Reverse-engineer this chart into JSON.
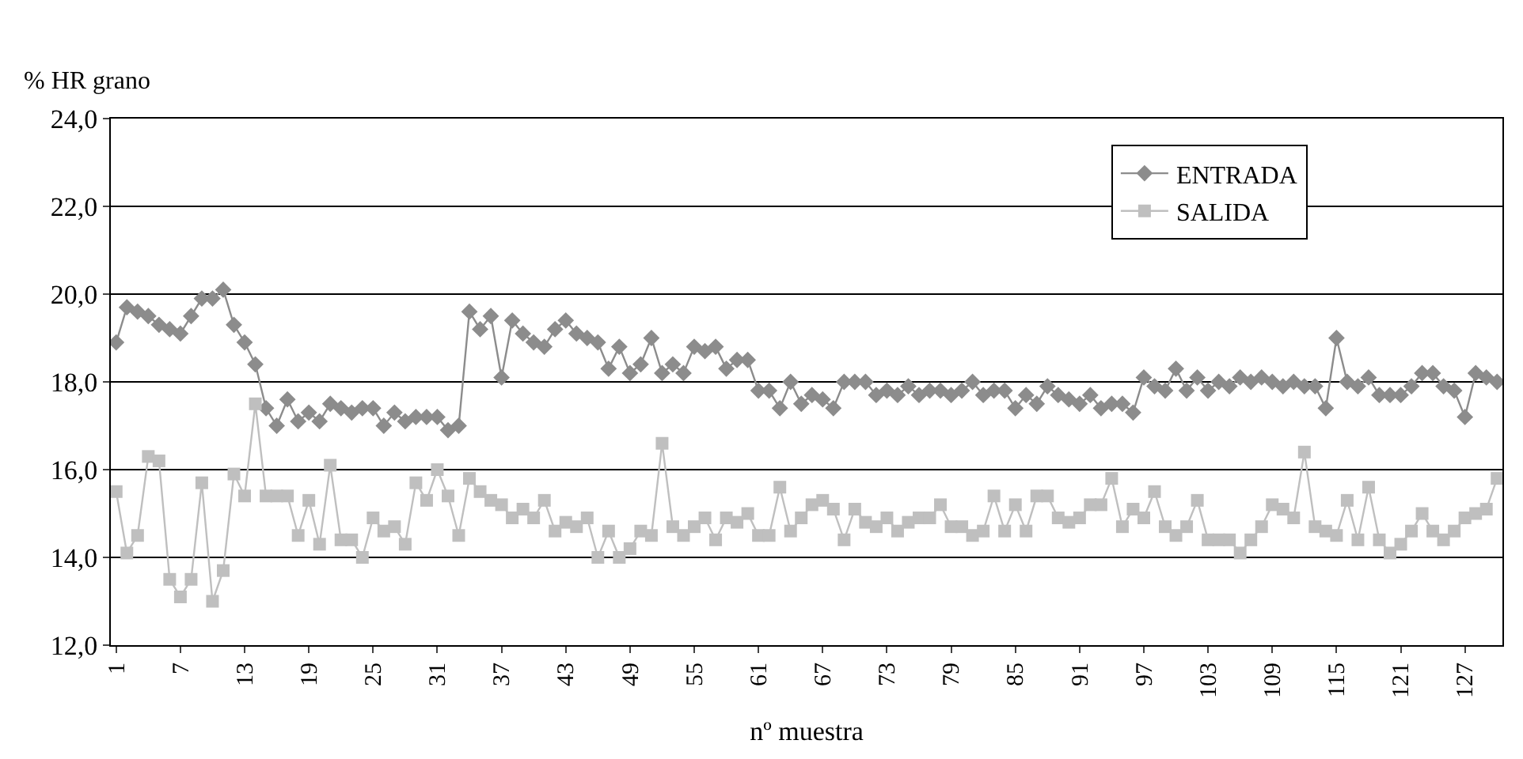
{
  "chart_data": {
    "type": "line",
    "ylabel": "% HR grano",
    "xlabel": "nº muestra",
    "x": [
      1,
      2,
      3,
      4,
      5,
      6,
      7,
      8,
      9,
      10,
      11,
      12,
      13,
      14,
      15,
      16,
      17,
      18,
      19,
      20,
      21,
      22,
      23,
      24,
      25,
      26,
      27,
      28,
      29,
      30,
      31,
      32,
      33,
      34,
      35,
      36,
      37,
      38,
      39,
      40,
      41,
      42,
      43,
      44,
      45,
      46,
      47,
      48,
      49,
      50,
      51,
      52,
      53,
      54,
      55,
      56,
      57,
      58,
      59,
      60,
      61,
      62,
      63,
      64,
      65,
      66,
      67,
      68,
      69,
      70,
      71,
      72,
      73,
      74,
      75,
      76,
      77,
      78,
      79,
      80,
      81,
      82,
      83,
      84,
      85,
      86,
      87,
      88,
      89,
      90,
      91,
      92,
      93,
      94,
      95,
      96,
      97,
      98,
      99,
      100,
      101,
      102,
      103,
      104,
      105,
      106,
      107,
      108,
      109,
      110,
      111,
      112,
      113,
      114,
      115,
      116,
      117,
      118,
      119,
      120,
      121,
      122,
      123,
      124,
      125,
      126,
      127,
      128,
      129,
      130
    ],
    "series": [
      {
        "name": "ENTRADA",
        "color": "#8c8c8c",
        "marker": "diamond",
        "values": [
          18.9,
          19.7,
          19.6,
          19.5,
          19.3,
          19.2,
          19.1,
          19.5,
          19.9,
          19.9,
          20.1,
          19.3,
          18.9,
          18.4,
          17.4,
          17.0,
          17.6,
          17.1,
          17.3,
          17.1,
          17.5,
          17.4,
          17.3,
          17.4,
          17.4,
          17.0,
          17.3,
          17.1,
          17.2,
          17.2,
          17.2,
          16.9,
          17.0,
          19.6,
          19.2,
          19.5,
          18.1,
          19.4,
          19.1,
          18.9,
          18.8,
          19.2,
          19.4,
          19.1,
          19.0,
          18.9,
          18.3,
          18.8,
          18.2,
          18.4,
          19.0,
          18.2,
          18.4,
          18.2,
          18.8,
          18.7,
          18.8,
          18.3,
          18.5,
          18.5,
          17.8,
          17.8,
          17.4,
          18.0,
          17.5,
          17.7,
          17.6,
          17.4,
          18.0,
          18.0,
          18.0,
          17.7,
          17.8,
          17.7,
          17.9,
          17.7,
          17.8,
          17.8,
          17.7,
          17.8,
          18.0,
          17.7,
          17.8,
          17.8,
          17.4,
          17.7,
          17.5,
          17.9,
          17.7,
          17.6,
          17.5,
          17.7,
          17.4,
          17.5,
          17.5,
          17.3,
          18.1,
          17.9,
          17.8,
          18.3,
          17.8,
          18.1,
          17.8,
          18.0,
          17.9,
          18.1,
          18.0,
          18.1,
          18.0,
          17.9,
          18.0,
          17.9,
          17.9,
          17.4,
          19.0,
          18.0,
          17.9,
          18.1,
          17.7,
          17.7,
          17.7,
          17.9,
          18.2,
          18.2,
          17.9,
          17.8,
          17.2,
          18.2,
          18.1,
          18.0
        ]
      },
      {
        "name": "SALIDA",
        "color": "#bfbfbf",
        "marker": "square",
        "values": [
          15.5,
          14.1,
          14.5,
          16.3,
          16.2,
          13.5,
          13.1,
          13.5,
          15.7,
          13.0,
          13.7,
          15.9,
          15.4,
          17.5,
          15.4,
          15.4,
          15.4,
          14.5,
          15.3,
          14.3,
          16.1,
          14.4,
          14.4,
          14.0,
          14.9,
          14.6,
          14.7,
          14.3,
          15.7,
          15.3,
          16.0,
          15.4,
          14.5,
          15.8,
          15.5,
          15.3,
          15.2,
          14.9,
          15.1,
          14.9,
          15.3,
          14.6,
          14.8,
          14.7,
          14.9,
          14.0,
          14.6,
          14.0,
          14.2,
          14.6,
          14.5,
          16.6,
          14.7,
          14.5,
          14.7,
          14.9,
          14.4,
          14.9,
          14.8,
          15.0,
          14.5,
          14.5,
          15.6,
          14.6,
          14.9,
          15.2,
          15.3,
          15.1,
          14.4,
          15.1,
          14.8,
          14.7,
          14.9,
          14.6,
          14.8,
          14.9,
          14.9,
          15.2,
          14.7,
          14.7,
          14.5,
          14.6,
          15.4,
          14.6,
          15.2,
          14.6,
          15.4,
          15.4,
          14.9,
          14.8,
          14.9,
          15.2,
          15.2,
          15.8,
          14.7,
          15.1,
          14.9,
          15.5,
          14.7,
          14.5,
          14.7,
          15.3,
          14.4,
          14.4,
          14.4,
          14.1,
          14.4,
          14.7,
          15.2,
          15.1,
          14.9,
          16.4,
          14.7,
          14.6,
          14.5,
          15.3,
          14.4,
          15.6,
          14.4,
          14.1,
          14.3,
          14.6,
          15.0,
          14.6,
          14.4,
          14.6,
          14.9,
          15.0,
          15.1,
          15.8
        ]
      }
    ],
    "xlim": [
      0.5,
      130.5
    ],
    "xticks": [
      1,
      7,
      13,
      19,
      25,
      31,
      37,
      43,
      49,
      55,
      61,
      67,
      73,
      79,
      85,
      91,
      97,
      103,
      109,
      115,
      121,
      127
    ],
    "ylim": [
      12,
      24
    ],
    "yticks": [
      {
        "value": 12,
        "label": "12,0"
      },
      {
        "value": 14,
        "label": "14,0"
      },
      {
        "value": 16,
        "label": "16,0"
      },
      {
        "value": 18,
        "label": "18,0"
      },
      {
        "value": 20,
        "label": "20,0"
      },
      {
        "value": 22,
        "label": "22,0"
      },
      {
        "value": 24,
        "label": "24,0"
      }
    ],
    "grid": "y",
    "legend": "top right",
    "line_style": "solid"
  }
}
